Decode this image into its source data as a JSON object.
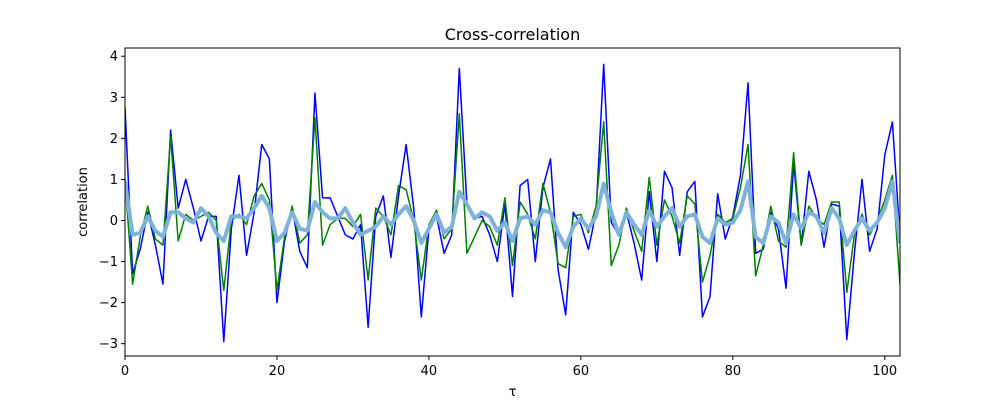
{
  "chart_data": {
    "type": "line",
    "title": "Cross-correlation",
    "xlabel": "τ",
    "ylabel": "correlation",
    "xlim": [
      0,
      102
    ],
    "ylim": [
      -3.3,
      4.2
    ],
    "xticks": [
      0,
      20,
      40,
      60,
      80,
      100
    ],
    "yticks": [
      -3,
      -2,
      -1,
      0,
      1,
      2,
      3,
      4
    ],
    "grid": false,
    "legend": "none",
    "x": [
      0,
      1,
      2,
      3,
      4,
      5,
      6,
      7,
      8,
      9,
      10,
      11,
      12,
      13,
      14,
      15,
      16,
      17,
      18,
      19,
      20,
      21,
      22,
      23,
      24,
      25,
      26,
      27,
      28,
      29,
      30,
      31,
      32,
      33,
      34,
      35,
      36,
      37,
      38,
      39,
      40,
      41,
      42,
      43,
      44,
      45,
      46,
      47,
      48,
      49,
      50,
      51,
      52,
      53,
      54,
      55,
      56,
      57,
      58,
      59,
      60,
      61,
      62,
      63,
      64,
      65,
      66,
      67,
      68,
      69,
      70,
      71,
      72,
      73,
      74,
      75,
      76,
      77,
      78,
      79,
      80,
      81,
      82,
      83,
      84,
      85,
      86,
      87,
      88,
      89,
      90,
      91,
      92,
      93,
      94,
      95,
      96,
      97,
      98,
      99,
      100,
      101,
      102
    ],
    "series": [
      {
        "color": "#0000ff",
        "linewidth": 1.5,
        "values": [
          2.75,
          -1.3,
          -0.7,
          0.2,
          -0.6,
          -1.55,
          2.2,
          0.3,
          1.0,
          0.3,
          -0.5,
          0.1,
          0.1,
          -2.95,
          -0.2,
          1.1,
          -0.85,
          0.2,
          1.85,
          1.5,
          -2.0,
          -0.5,
          0.3,
          -0.75,
          -1.15,
          3.1,
          0.55,
          0.55,
          0.1,
          -0.35,
          -0.45,
          -0.1,
          -2.6,
          0.1,
          0.6,
          -0.9,
          0.6,
          1.85,
          0.3,
          -2.35,
          -0.2,
          0.1,
          -0.8,
          -0.35,
          3.7,
          0.4,
          0.05,
          0.1,
          -0.35,
          -1.0,
          0.4,
          -1.85,
          0.85,
          1.0,
          -1.0,
          0.8,
          1.5,
          -1.2,
          -2.3,
          0.2,
          -0.1,
          -0.7,
          0.2,
          3.8,
          -0.05,
          -0.35,
          0.2,
          -0.55,
          -1.45,
          0.7,
          -1.0,
          1.2,
          0.8,
          -0.85,
          0.7,
          0.95,
          -2.35,
          -1.85,
          0.65,
          -0.45,
          0.1,
          1.1,
          3.35,
          -0.8,
          -0.7,
          0.2,
          -0.2,
          -1.65,
          1.4,
          -0.6,
          1.2,
          0.5,
          -0.65,
          0.4,
          0.35,
          -2.9,
          -0.8,
          1.0,
          -0.75,
          -0.2,
          1.6,
          2.4,
          -0.4
        ]
      },
      {
        "color": "#008000",
        "linewidth": 1.5,
        "values": [
          1.0,
          -1.55,
          -0.4,
          0.35,
          -0.45,
          -0.6,
          2.05,
          -0.5,
          0.15,
          0.0,
          0.1,
          0.2,
          0.0,
          -1.7,
          0.0,
          0.15,
          -0.1,
          0.6,
          0.9,
          0.5,
          -1.7,
          -0.4,
          0.35,
          -0.55,
          -0.35,
          2.5,
          -0.6,
          -0.1,
          0.05,
          0.05,
          -0.15,
          0.15,
          -1.45,
          0.3,
          0.1,
          -0.35,
          0.85,
          0.75,
          0.0,
          -1.45,
          -0.1,
          0.25,
          -0.45,
          -0.2,
          2.6,
          -0.8,
          -0.4,
          0.0,
          -0.15,
          -0.6,
          0.55,
          -1.1,
          0.45,
          0.15,
          -0.45,
          0.9,
          0.2,
          -1.05,
          -1.15,
          0.1,
          0.15,
          -0.3,
          0.35,
          2.4,
          -1.1,
          -0.6,
          0.3,
          -0.25,
          -0.75,
          1.05,
          -0.6,
          0.5,
          0.1,
          -0.55,
          0.6,
          0.4,
          -1.5,
          -0.85,
          0.15,
          -0.05,
          0.05,
          0.8,
          1.85,
          -1.35,
          -0.6,
          0.35,
          -0.5,
          -0.65,
          1.65,
          -0.6,
          0.35,
          0.05,
          -0.1,
          0.45,
          0.45,
          -1.75,
          -0.35,
          0.15,
          -0.35,
          0.0,
          0.5,
          1.1,
          -1.55
        ]
      },
      {
        "color": "#7fb2d8",
        "linewidth": 4,
        "values": [
          0.95,
          -0.35,
          -0.3,
          0.1,
          -0.25,
          -0.4,
          0.2,
          0.2,
          0.05,
          -0.05,
          0.3,
          0.1,
          -0.3,
          -0.5,
          0.1,
          0.1,
          0.05,
          0.3,
          0.6,
          0.3,
          -0.5,
          -0.3,
          0.2,
          -0.2,
          -0.25,
          0.45,
          0.2,
          0.05,
          0.05,
          0.3,
          -0.05,
          -0.35,
          -0.25,
          -0.15,
          0.1,
          -0.1,
          0.15,
          0.35,
          0.0,
          -0.55,
          -0.2,
          0.15,
          -0.3,
          -0.15,
          0.7,
          0.4,
          0.05,
          0.2,
          0.1,
          -0.25,
          -0.05,
          -0.5,
          0.05,
          0.1,
          -0.1,
          0.25,
          0.2,
          -0.3,
          -0.65,
          -0.15,
          0.05,
          -0.2,
          0.1,
          0.9,
          0.2,
          -0.35,
          0.2,
          -0.1,
          -0.35,
          0.25,
          -0.15,
          0.1,
          0.3,
          -0.15,
          0.1,
          0.15,
          -0.4,
          -0.55,
          0.05,
          -0.1,
          -0.05,
          0.25,
          0.95,
          -0.4,
          -0.55,
          0.1,
          -0.05,
          -0.55,
          0.15,
          -0.2,
          0.2,
          0.1,
          -0.3,
          0.3,
          0.05,
          -0.6,
          -0.25,
          0.05,
          -0.25,
          -0.05,
          0.3,
          0.95,
          -0.55
        ]
      }
    ]
  }
}
